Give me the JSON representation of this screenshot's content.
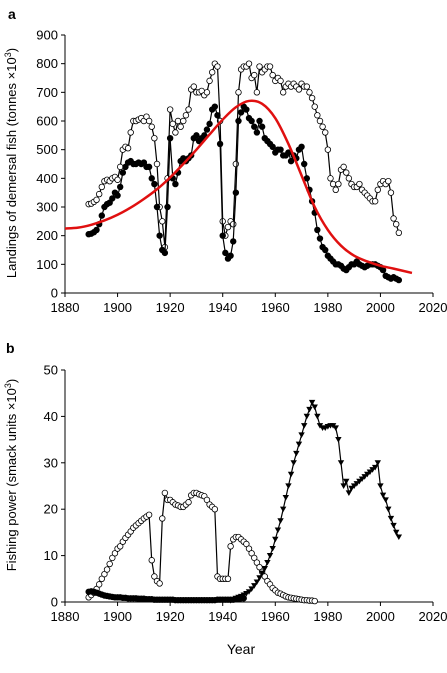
{
  "chart_data": [
    {
      "panel_label": "a",
      "type": "line",
      "ylabel_main": "Landings of demersal fish (tonnes ",
      "ylabel_unit": "×10",
      "ylabel_exp": "3",
      "ylabel_close": ")",
      "xlim": [
        1880,
        2020
      ],
      "ylim": [
        0,
        900
      ],
      "xticks": [
        "1880",
        "1900",
        "1920",
        "1940",
        "1960",
        "1980",
        "2000",
        "2020"
      ],
      "yticks": [
        "0",
        "100",
        "200",
        "300",
        "400",
        "500",
        "600",
        "700",
        "800",
        "900"
      ],
      "series": [
        {
          "marker": "open-circle",
          "color": "#000000",
          "x": [
            1889,
            1890,
            1891,
            1892,
            1893,
            1894,
            1895,
            1896,
            1897,
            1898,
            1899,
            1900,
            1901,
            1902,
            1903,
            1904,
            1905,
            1906,
            1907,
            1908,
            1909,
            1910,
            1911,
            1912,
            1913,
            1914,
            1915,
            1916,
            1917,
            1918,
            1919,
            1920,
            1921,
            1922,
            1923,
            1924,
            1925,
            1926,
            1927,
            1928,
            1929,
            1930,
            1931,
            1932,
            1933,
            1934,
            1935,
            1936,
            1937,
            1938,
            1939,
            1940,
            1941,
            1942,
            1943,
            1944,
            1945,
            1946,
            1947,
            1948,
            1949,
            1950,
            1951,
            1952,
            1953,
            1954,
            1955,
            1956,
            1957,
            1958,
            1959,
            1960,
            1961,
            1962,
            1963,
            1964,
            1965,
            1966,
            1967,
            1968,
            1969,
            1970,
            1971,
            1972,
            1973,
            1974,
            1975,
            1976,
            1977,
            1978,
            1979,
            1980,
            1981,
            1982,
            1983,
            1984,
            1985,
            1986,
            1987,
            1988,
            1989,
            1990,
            1991,
            1992,
            1993,
            1994,
            1995,
            1996,
            1997,
            1998,
            1999,
            2000,
            2001,
            2002,
            2003,
            2004,
            2005,
            2006,
            2007
          ],
          "values": [
            310,
            312,
            318,
            325,
            345,
            370,
            390,
            395,
            390,
            400,
            405,
            395,
            440,
            500,
            510,
            505,
            560,
            600,
            600,
            605,
            610,
            600,
            615,
            600,
            580,
            540,
            450,
            300,
            250,
            160,
            400,
            640,
            590,
            560,
            600,
            580,
            600,
            620,
            640,
            710,
            720,
            700,
            700,
            705,
            690,
            700,
            740,
            770,
            800,
            790,
            600,
            250,
            200,
            230,
            250,
            240,
            450,
            700,
            780,
            790,
            790,
            800,
            750,
            760,
            700,
            790,
            770,
            780,
            790,
            790,
            760,
            740,
            750,
            740,
            700,
            720,
            730,
            720,
            730,
            720,
            710,
            730,
            720,
            720,
            700,
            680,
            650,
            620,
            600,
            580,
            560,
            500,
            400,
            380,
            360,
            380,
            430,
            440,
            420,
            400,
            380,
            370,
            370,
            380,
            360,
            350,
            340,
            330,
            320,
            320,
            360,
            380,
            390,
            380,
            390,
            350,
            260,
            240,
            210
          ]
        },
        {
          "marker": "filled-circle",
          "color": "#000000",
          "x": [
            1889,
            1890,
            1891,
            1892,
            1893,
            1894,
            1895,
            1896,
            1897,
            1898,
            1899,
            1900,
            1901,
            1902,
            1903,
            1904,
            1905,
            1906,
            1907,
            1908,
            1909,
            1910,
            1911,
            1912,
            1913,
            1914,
            1915,
            1916,
            1917,
            1918,
            1919,
            1920,
            1921,
            1922,
            1923,
            1924,
            1925,
            1926,
            1927,
            1928,
            1929,
            1930,
            1931,
            1932,
            1933,
            1934,
            1935,
            1936,
            1937,
            1938,
            1939,
            1940,
            1941,
            1942,
            1943,
            1944,
            1945,
            1946,
            1947,
            1948,
            1949,
            1950,
            1951,
            1952,
            1953,
            1954,
            1955,
            1956,
            1957,
            1958,
            1959,
            1960,
            1961,
            1962,
            1963,
            1964,
            1965,
            1966,
            1967,
            1968,
            1969,
            1970,
            1971,
            1972,
            1973,
            1974,
            1975,
            1976,
            1977,
            1978,
            1979,
            1980,
            1981,
            1982,
            1983,
            1984,
            1985,
            1986,
            1987,
            1988,
            1989,
            1990,
            1991,
            1992,
            1993,
            1994,
            1995,
            1996,
            1997,
            1998,
            1999,
            2000,
            2001,
            2002,
            2003,
            2004,
            2005,
            2006,
            2007
          ],
          "values": [
            205,
            207,
            212,
            220,
            240,
            270,
            300,
            310,
            315,
            330,
            350,
            340,
            370,
            420,
            440,
            455,
            460,
            450,
            450,
            455,
            450,
            455,
            440,
            440,
            400,
            380,
            300,
            200,
            150,
            140,
            300,
            540,
            400,
            380,
            420,
            460,
            470,
            460,
            470,
            480,
            540,
            550,
            530,
            540,
            550,
            570,
            590,
            640,
            650,
            620,
            520,
            200,
            140,
            120,
            130,
            180,
            350,
            600,
            630,
            650,
            640,
            610,
            600,
            580,
            560,
            600,
            580,
            540,
            530,
            520,
            510,
            490,
            500,
            500,
            480,
            480,
            490,
            460,
            480,
            470,
            500,
            510,
            450,
            400,
            360,
            320,
            280,
            220,
            190,
            160,
            150,
            130,
            120,
            110,
            100,
            100,
            95,
            85,
            80,
            90,
            100,
            100,
            110,
            100,
            95,
            90,
            95,
            100,
            100,
            100,
            95,
            90,
            80,
            60,
            55,
            50,
            55,
            50,
            45
          ]
        },
        {
          "marker": "none",
          "style": "smooth-fit",
          "color": "#e01010",
          "x": [
            1880,
            1885,
            1890,
            1895,
            1900,
            1905,
            1910,
            1915,
            1920,
            1925,
            1930,
            1935,
            1940,
            1945,
            1950,
            1955,
            1960,
            1965,
            1970,
            1975,
            1980,
            1985,
            1990,
            1995,
            2000,
            2005,
            2012
          ],
          "values": [
            225,
            228,
            238,
            253,
            273,
            298,
            328,
            362,
            403,
            450,
            500,
            553,
            605,
            648,
            670,
            660,
            610,
            520,
            410,
            300,
            220,
            165,
            130,
            110,
            95,
            85,
            70
          ]
        }
      ]
    },
    {
      "panel_label": "b",
      "type": "line",
      "ylabel_main": "Fishing power (smack units ",
      "ylabel_unit": "×10",
      "ylabel_exp": "3",
      "ylabel_close": ")",
      "xlabel": "Year",
      "xlim": [
        1880,
        2020
      ],
      "ylim": [
        0,
        50
      ],
      "xticks": [
        "1880",
        "1900",
        "1920",
        "1940",
        "1960",
        "1980",
        "2000",
        "2020"
      ],
      "yticks": [
        "0",
        "10",
        "20",
        "30",
        "40",
        "50"
      ],
      "series": [
        {
          "marker": "open-circle",
          "color": "#000000",
          "x": [
            1889,
            1890,
            1891,
            1892,
            1893,
            1894,
            1895,
            1896,
            1897,
            1898,
            1899,
            1900,
            1901,
            1902,
            1903,
            1904,
            1905,
            1906,
            1907,
            1908,
            1909,
            1910,
            1911,
            1912,
            1913,
            1914,
            1915,
            1916,
            1917,
            1918,
            1919,
            1920,
            1921,
            1922,
            1923,
            1924,
            1925,
            1926,
            1927,
            1928,
            1929,
            1930,
            1931,
            1932,
            1933,
            1934,
            1935,
            1936,
            1937,
            1938,
            1939,
            1940,
            1941,
            1942,
            1943,
            1944,
            1945,
            1946,
            1947,
            1948,
            1949,
            1950,
            1951,
            1952,
            1953,
            1954,
            1955,
            1956,
            1957,
            1958,
            1959,
            1960,
            1961,
            1962,
            1963,
            1964,
            1965,
            1966,
            1967,
            1968,
            1969,
            1970,
            1971,
            1972,
            1973,
            1974,
            1975
          ],
          "values": [
            1.0,
            1.5,
            2.0,
            2.8,
            3.8,
            5.0,
            6.0,
            7.0,
            8.2,
            9.5,
            10.5,
            11.5,
            12.0,
            13.0,
            13.8,
            14.5,
            15.2,
            16.0,
            16.5,
            17.0,
            17.5,
            18.0,
            18.4,
            18.8,
            9.0,
            5.5,
            4.5,
            4.0,
            18.0,
            23.5,
            22.0,
            22.0,
            21.5,
            21.0,
            20.8,
            20.5,
            20.5,
            21.0,
            21.5,
            23.0,
            23.5,
            23.5,
            23.2,
            23.0,
            22.8,
            22.0,
            21.0,
            20.5,
            20.0,
            5.5,
            5.0,
            5.0,
            5.0,
            5.0,
            12.0,
            13.5,
            14.0,
            14.0,
            13.5,
            13.0,
            12.5,
            11.5,
            10.5,
            9.5,
            8.5,
            7.5,
            6.5,
            5.5,
            4.5,
            3.8,
            3.0,
            2.5,
            2.0,
            1.8,
            1.5,
            1.2,
            1.0,
            0.9,
            0.8,
            0.7,
            0.6,
            0.5,
            0.4,
            0.4,
            0.3,
            0.3,
            0.2
          ]
        },
        {
          "marker": "filled-circle",
          "color": "#000000",
          "x": [
            1889,
            1890,
            1891,
            1892,
            1893,
            1894,
            1895,
            1896,
            1897,
            1898,
            1899,
            1900,
            1901,
            1902,
            1903,
            1904,
            1905,
            1906,
            1907,
            1908,
            1909,
            1910,
            1911,
            1912,
            1913,
            1914,
            1915,
            1916,
            1917,
            1918,
            1919,
            1920,
            1921,
            1922,
            1923,
            1924,
            1925,
            1926,
            1927,
            1928,
            1929,
            1930,
            1931,
            1932,
            1933,
            1934,
            1935,
            1936,
            1937,
            1938,
            1939,
            1940,
            1941,
            1942,
            1943,
            1944,
            1945,
            1946,
            1947,
            1948
          ],
          "values": [
            2.2,
            2.3,
            2.2,
            2.0,
            1.8,
            1.6,
            1.4,
            1.3,
            1.2,
            1.1,
            1.0,
            1.0,
            1.0,
            0.9,
            0.9,
            0.8,
            0.8,
            0.8,
            0.8,
            0.7,
            0.7,
            0.7,
            0.6,
            0.6,
            0.6,
            0.5,
            0.5,
            0.5,
            0.5,
            0.5,
            0.5,
            0.5,
            0.5,
            0.4,
            0.4,
            0.4,
            0.4,
            0.4,
            0.4,
            0.4,
            0.4,
            0.4,
            0.4,
            0.4,
            0.4,
            0.4,
            0.4,
            0.4,
            0.4,
            0.5,
            0.5,
            0.5,
            0.5,
            0.5,
            0.5,
            0.5,
            0.6,
            0.6,
            0.8,
            0.8
          ]
        },
        {
          "marker": "filled-triangle-down",
          "color": "#000000",
          "x": [
            1943,
            1944,
            1945,
            1946,
            1947,
            1948,
            1949,
            1950,
            1951,
            1952,
            1953,
            1954,
            1955,
            1956,
            1957,
            1958,
            1959,
            1960,
            1961,
            1962,
            1963,
            1964,
            1965,
            1966,
            1967,
            1968,
            1969,
            1970,
            1971,
            1972,
            1973,
            1974,
            1975,
            1976,
            1977,
            1978,
            1979,
            1980,
            1981,
            1982,
            1983,
            1984,
            1985,
            1986,
            1987,
            1988,
            1989,
            1990,
            1991,
            1992,
            1993,
            1994,
            1995,
            1996,
            1997,
            1998,
            1999,
            2000,
            2001,
            2002,
            2003,
            2004,
            2005,
            2006,
            2007
          ],
          "values": [
            0.3,
            0.5,
            0.8,
            1.0,
            1.2,
            1.5,
            1.8,
            2.2,
            2.8,
            3.5,
            4.3,
            5.2,
            6.2,
            7.2,
            8.5,
            10.0,
            11.5,
            13.5,
            15.5,
            17.5,
            20.0,
            22.5,
            25.0,
            27.5,
            30.0,
            32.0,
            34.0,
            36.0,
            38.0,
            40.0,
            41.5,
            43.0,
            42.0,
            40.0,
            38.0,
            37.5,
            37.5,
            37.8,
            38.0,
            38.0,
            37.5,
            35.0,
            30.0,
            25.0,
            26.0,
            23.5,
            24.5,
            25.0,
            25.5,
            26.0,
            26.5,
            27.0,
            27.5,
            28.0,
            28.5,
            29.0,
            30.0,
            25.0,
            23.0,
            22.0,
            20.0,
            18.0,
            16.5,
            15.0,
            14.0
          ]
        }
      ]
    }
  ]
}
